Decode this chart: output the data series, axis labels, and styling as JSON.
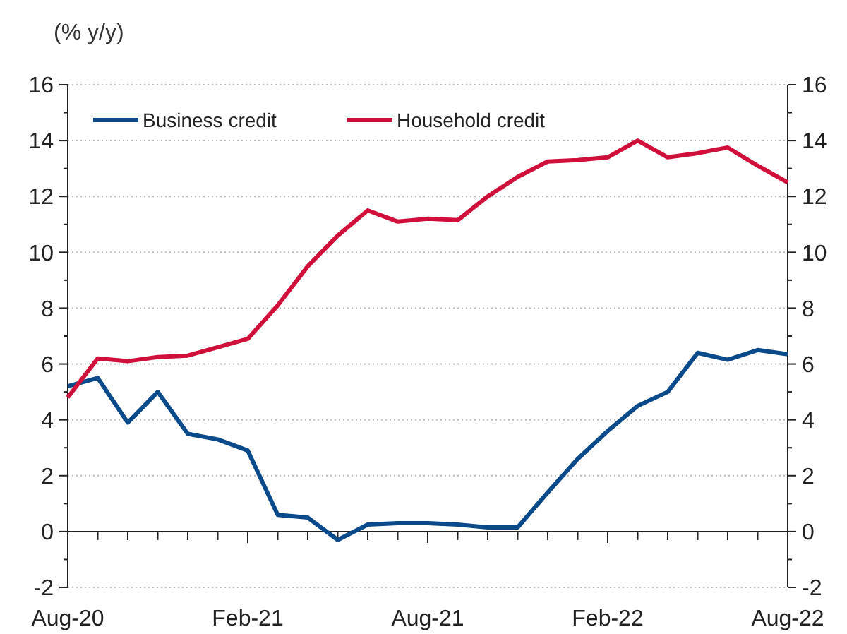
{
  "chart_data": {
    "type": "line",
    "ylabel": "(% y/y)",
    "categories": [
      "Aug-20",
      null,
      null,
      null,
      null,
      null,
      "Feb-21",
      null,
      null,
      null,
      null,
      null,
      "Aug-21",
      null,
      null,
      null,
      null,
      null,
      "Feb-22",
      null,
      null,
      null,
      null,
      null,
      "Aug-22"
    ],
    "series": [
      {
        "name": "Business credit",
        "color": "#0a4a8a",
        "values": [
          5.2,
          5.5,
          3.9,
          5.0,
          3.5,
          3.3,
          2.9,
          0.6,
          0.5,
          -0.3,
          0.25,
          0.3,
          0.3,
          0.25,
          0.15,
          0.15,
          1.4,
          2.6,
          3.6,
          4.5,
          5.0,
          6.4,
          6.15,
          6.5,
          6.35
        ]
      },
      {
        "name": "Household credit",
        "color": "#d0103a",
        "values": [
          4.8,
          6.2,
          6.1,
          6.25,
          6.3,
          6.6,
          6.9,
          8.1,
          9.5,
          10.6,
          11.5,
          11.1,
          11.2,
          11.15,
          12.0,
          12.7,
          13.25,
          13.3,
          13.4,
          14.0,
          13.4,
          13.55,
          13.75,
          13.1,
          12.5
        ]
      }
    ],
    "ylim": [
      -2,
      16
    ],
    "yticks": [
      -2,
      0,
      2,
      4,
      6,
      8,
      10,
      12,
      14,
      16
    ],
    "y2lim": [
      -2,
      16
    ],
    "y2ticks": [
      -2,
      0,
      2,
      4,
      6,
      8,
      10,
      12,
      14,
      16
    ],
    "grid": "y",
    "legend": "top left",
    "marker": "none",
    "line_style": "solid"
  }
}
